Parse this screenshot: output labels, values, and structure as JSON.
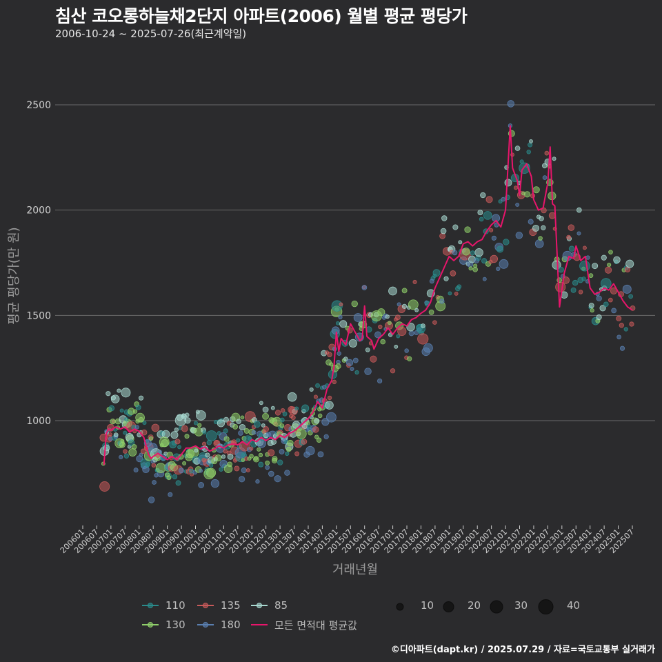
{
  "header": {
    "title": "침산 코오롱하늘채2단지 아파트(2006) 월별 평균 평당가",
    "subtitle": "2006-10-24 ~ 2025-07-26(최근계약일)"
  },
  "caption": "©디아파트(dapt.kr) / 2025.07.29 / 자료=국토교통부 실거래가",
  "colors": {
    "background": "#2b2b2d",
    "grid": "#6a6a6a",
    "avg_line": "#e8156b",
    "s110": "#2a8c8c",
    "s135": "#c85a5a",
    "s85": "#a8d8d0",
    "s130": "#8fcf6a",
    "s180": "#5a7fb0"
  },
  "chart_data": {
    "type": "scatter",
    "title": "침산 코오롱하늘채2단지 아파트(2006) 월별 평균 평당가",
    "xlabel": "거래년월",
    "ylabel": "평균 평당가(만 원)",
    "ylim": [
      500,
      2750
    ],
    "yticks": [
      1000,
      1500,
      2000,
      2500
    ],
    "xlim": [
      "200601",
      "202507"
    ],
    "xticks": [
      "200601",
      "200607",
      "200701",
      "200707",
      "200801",
      "200807",
      "200901",
      "200907",
      "201001",
      "201007",
      "201101",
      "201107",
      "201201",
      "201207",
      "201301",
      "201307",
      "201401",
      "201407",
      "201501",
      "201507",
      "201601",
      "201607",
      "201701",
      "201707",
      "201801",
      "201807",
      "201901",
      "201907",
      "202001",
      "202007",
      "202101",
      "202107",
      "202201",
      "202207",
      "202301",
      "202307",
      "202401",
      "202407",
      "202501",
      "202507"
    ],
    "legend": {
      "series_labels": [
        "110",
        "135",
        "85",
        "130",
        "180",
        "모든 면적대 평균값"
      ],
      "size_labels": [
        "10",
        "20",
        "30",
        "40"
      ]
    },
    "average_line": {
      "name": "모든 면적대 평균값",
      "points": [
        [
          "200610",
          790
        ],
        [
          "200611",
          940
        ],
        [
          "200612",
          960
        ],
        [
          "200701",
          955
        ],
        [
          "200703",
          970
        ],
        [
          "200705",
          960
        ],
        [
          "200707",
          970
        ],
        [
          "200709",
          945
        ],
        [
          "200711",
          960
        ],
        [
          "200801",
          950
        ],
        [
          "200803",
          920
        ],
        [
          "200804",
          880
        ],
        [
          "200805",
          840
        ],
        [
          "200806",
          820
        ],
        [
          "200807",
          830
        ],
        [
          "200809",
          845
        ],
        [
          "200811",
          830
        ],
        [
          "200901",
          815
        ],
        [
          "200903",
          830
        ],
        [
          "200905",
          815
        ],
        [
          "200907",
          840
        ],
        [
          "200909",
          870
        ],
        [
          "200911",
          870
        ],
        [
          "201001",
          880
        ],
        [
          "201003",
          865
        ],
        [
          "201005",
          875
        ],
        [
          "201007",
          855
        ],
        [
          "201009",
          865
        ],
        [
          "201011",
          880
        ],
        [
          "201101",
          870
        ],
        [
          "201103",
          885
        ],
        [
          "201105",
          890
        ],
        [
          "201107",
          885
        ],
        [
          "201109",
          900
        ],
        [
          "201111",
          885
        ],
        [
          "201201",
          910
        ],
        [
          "201203",
          900
        ],
        [
          "201205",
          920
        ],
        [
          "201207",
          905
        ],
        [
          "201209",
          920
        ],
        [
          "201211",
          910
        ],
        [
          "201301",
          930
        ],
        [
          "201303",
          920
        ],
        [
          "201305",
          940
        ],
        [
          "201307",
          950
        ],
        [
          "201309",
          970
        ],
        [
          "201311",
          990
        ],
        [
          "201401",
          1010
        ],
        [
          "201403",
          1040
        ],
        [
          "201405",
          1090
        ],
        [
          "201407",
          1060
        ],
        [
          "201409",
          1150
        ],
        [
          "201411",
          1190
        ],
        [
          "201412",
          1260
        ],
        [
          "201501",
          1420
        ],
        [
          "201502",
          1330
        ],
        [
          "201503",
          1390
        ],
        [
          "201505",
          1360
        ],
        [
          "201507",
          1460
        ],
        [
          "201509",
          1420
        ],
        [
          "201511",
          1380
        ],
        [
          "201512",
          1390
        ],
        [
          "201601",
          1545
        ],
        [
          "201602",
          1400
        ],
        [
          "201604",
          1380
        ],
        [
          "201605",
          1340
        ],
        [
          "201607",
          1390
        ],
        [
          "201609",
          1410
        ],
        [
          "201611",
          1440
        ],
        [
          "201701",
          1410
        ],
        [
          "201703",
          1440
        ],
        [
          "201705",
          1460
        ],
        [
          "201707",
          1450
        ],
        [
          "201709",
          1480
        ],
        [
          "201711",
          1490
        ],
        [
          "201801",
          1510
        ],
        [
          "201803",
          1525
        ],
        [
          "201805",
          1560
        ],
        [
          "201807",
          1630
        ],
        [
          "201809",
          1680
        ],
        [
          "201811",
          1730
        ],
        [
          "201901",
          1780
        ],
        [
          "201903",
          1760
        ],
        [
          "201905",
          1780
        ],
        [
          "201907",
          1840
        ],
        [
          "201909",
          1850
        ],
        [
          "201911",
          1830
        ],
        [
          "202001",
          1850
        ],
        [
          "202003",
          1860
        ],
        [
          "202005",
          1900
        ],
        [
          "202007",
          1930
        ],
        [
          "202009",
          1950
        ],
        [
          "202011",
          1920
        ],
        [
          "202101",
          2000
        ],
        [
          "202103",
          2400
        ],
        [
          "202104",
          2200
        ],
        [
          "202106",
          2140
        ],
        [
          "202107",
          2070
        ],
        [
          "202108",
          2190
        ],
        [
          "202110",
          2220
        ],
        [
          "202112",
          2160
        ],
        [
          "202201",
          2050
        ],
        [
          "202203",
          2000
        ],
        [
          "202205",
          2010
        ],
        [
          "202207",
          2130
        ],
        [
          "202208",
          2300
        ],
        [
          "202209",
          2030
        ],
        [
          "202210",
          2020
        ],
        [
          "202212",
          1540
        ],
        [
          "202302",
          1700
        ],
        [
          "202304",
          1780
        ],
        [
          "202306",
          1770
        ],
        [
          "202307",
          1830
        ],
        [
          "202309",
          1760
        ],
        [
          "202311",
          1780
        ],
        [
          "202401",
          1630
        ],
        [
          "202403",
          1600
        ],
        [
          "202405",
          1610
        ],
        [
          "202407",
          1630
        ],
        [
          "202409",
          1620
        ],
        [
          "202411",
          1650
        ],
        [
          "202501",
          1610
        ],
        [
          "202503",
          1570
        ],
        [
          "202505",
          1540
        ],
        [
          "202507",
          1525
        ]
      ]
    }
  }
}
